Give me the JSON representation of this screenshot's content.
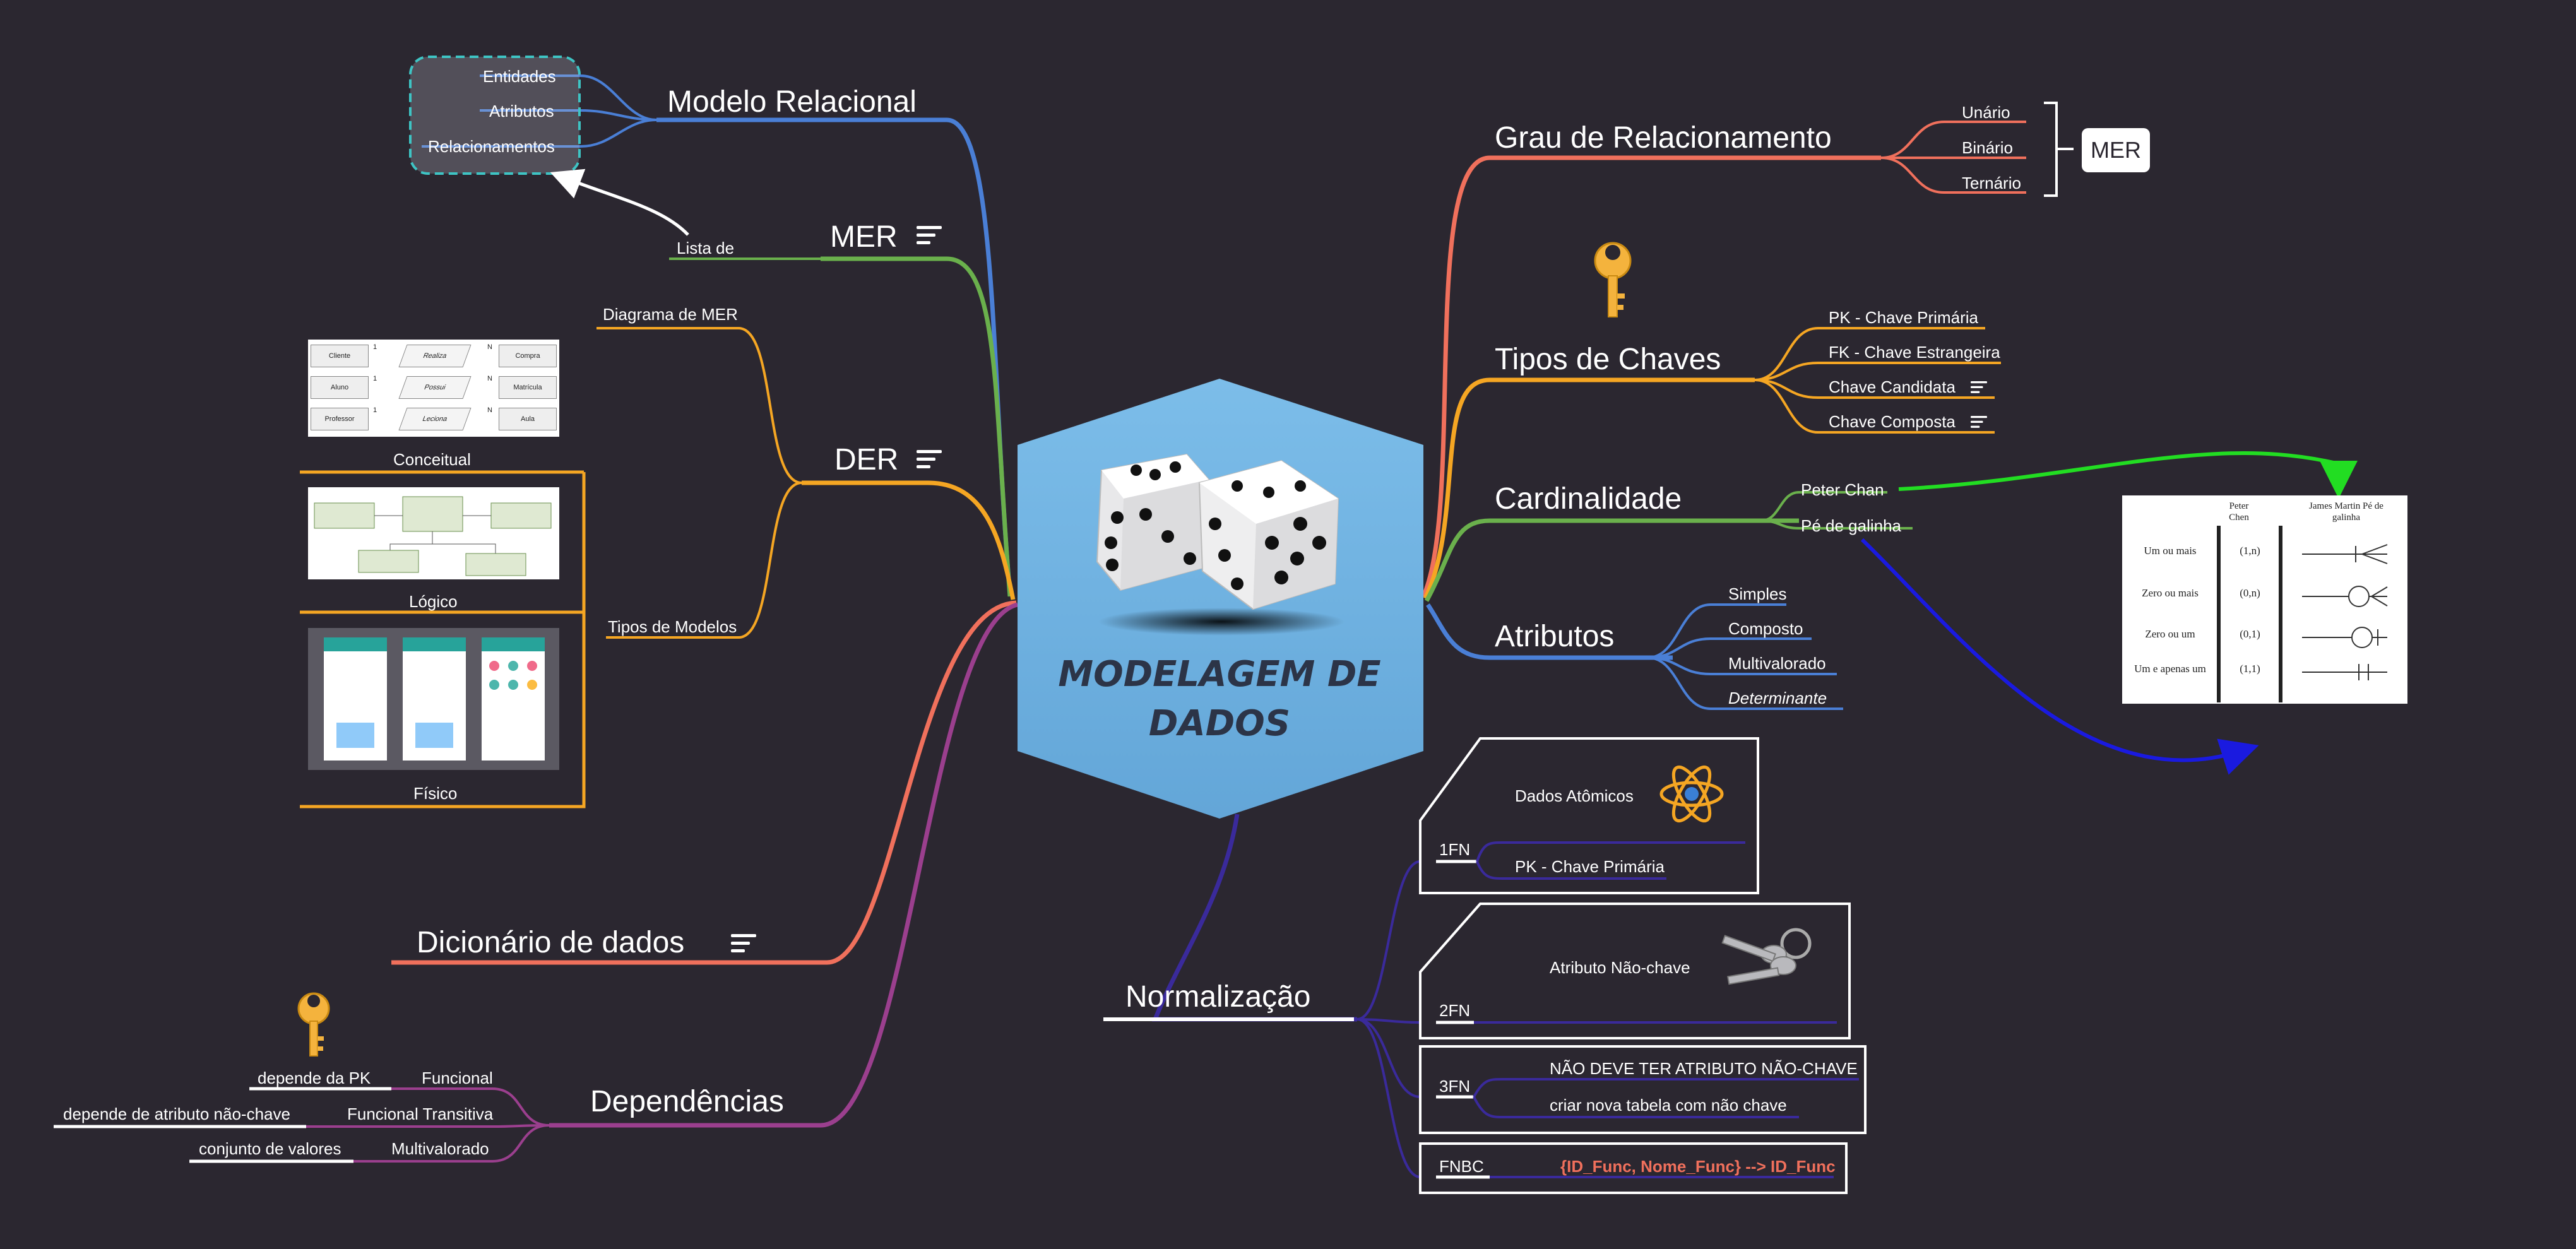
{
  "central": {
    "title_line1": "MODELAGEM DE",
    "title_line2": "DADOS"
  },
  "branches": {
    "modelo_relacional": {
      "label": "Modelo Relacional",
      "items": [
        "Entidades",
        "Atributos",
        "Relacionamentos"
      ]
    },
    "mer": {
      "label": "MER",
      "lista_de": "Lista de"
    },
    "der": {
      "label": "DER",
      "diagrama": "Diagrama de MER",
      "tipos": "Tipos de Modelos",
      "models": [
        "Conceitual",
        "Lógico",
        "Físico"
      ]
    },
    "dicionario": {
      "label": "Dicionário de dados"
    },
    "dependencias": {
      "label": "Dependências",
      "items": [
        {
          "type": "Funcional",
          "desc": "depende da PK"
        },
        {
          "type": "Funcional Transitiva",
          "desc": "depende de atributo não-chave"
        },
        {
          "type": "Multivalorado",
          "desc": "conjunto de valores"
        }
      ]
    },
    "grau": {
      "label": "Grau de Relacionamento",
      "items": [
        "Unário",
        "Binário",
        "Ternário"
      ],
      "callout": "MER"
    },
    "chaves": {
      "label": "Tipos de Chaves",
      "items": [
        "PK - Chave Primária",
        "FK - Chave Estrangeira",
        "Chave Candidata",
        "Chave Composta"
      ]
    },
    "cardinalidade": {
      "label": "Cardinalidade",
      "items": [
        "Peter Chan",
        "Pé de galinha"
      ]
    },
    "atributos": {
      "label": "Atributos",
      "items": [
        "Simples",
        "Composto",
        "Multivalorado",
        "Determinante"
      ]
    },
    "normalizacao": {
      "label": "Normalização",
      "fn1": {
        "tag": "1FN",
        "items": [
          "Dados Atômicos",
          "PK - Chave Primária"
        ]
      },
      "fn2": {
        "tag": "2FN",
        "items": [
          "Atributo Não-chave"
        ]
      },
      "fn3": {
        "tag": "3FN",
        "items": [
          "NÃO DEVE TER ATRIBUTO NÃO-CHAVE",
          "criar nova tabela com não chave"
        ]
      },
      "fnbc": {
        "tag": "FNBC",
        "items": [
          "{ID_Func, Nome_Func} --> ID_Func"
        ]
      }
    }
  },
  "cardinality_table": {
    "headers": [
      "Peter Chen",
      "James Martin Pé de galinha"
    ],
    "rows": [
      {
        "label": "Um ou mais",
        "value": "(1,n)"
      },
      {
        "label": "Zero ou mais",
        "value": "(0,n)"
      },
      {
        "label": "Zero ou um",
        "value": "(0,1)"
      },
      {
        "label": "Um e apenas um",
        "value": "(1,1)"
      }
    ]
  },
  "der_conceitual_diagram": {
    "rows": [
      {
        "left": "Cliente",
        "mid": "Realiza",
        "right": "Compra",
        "c1": "1",
        "c2": "N"
      },
      {
        "left": "Aluno",
        "mid": "Possui",
        "right": "Matrícula",
        "c1": "1",
        "c2": "N"
      },
      {
        "left": "Professor",
        "mid": "Leciona",
        "right": "Aula",
        "c1": "1",
        "c2": "N"
      }
    ]
  },
  "colors": {
    "background": "#2b2730",
    "hexagon": "#6fb3e2",
    "title": "#2c3447",
    "blue": "#4a7fd6",
    "green": "#6ab04c",
    "orange": "#f5a623",
    "coral": "#f0705c",
    "purple": "#9b3f8e",
    "indigo": "#3a2a9b",
    "teal": "#3ec4c4",
    "fnbc_text": "#f0705c"
  }
}
